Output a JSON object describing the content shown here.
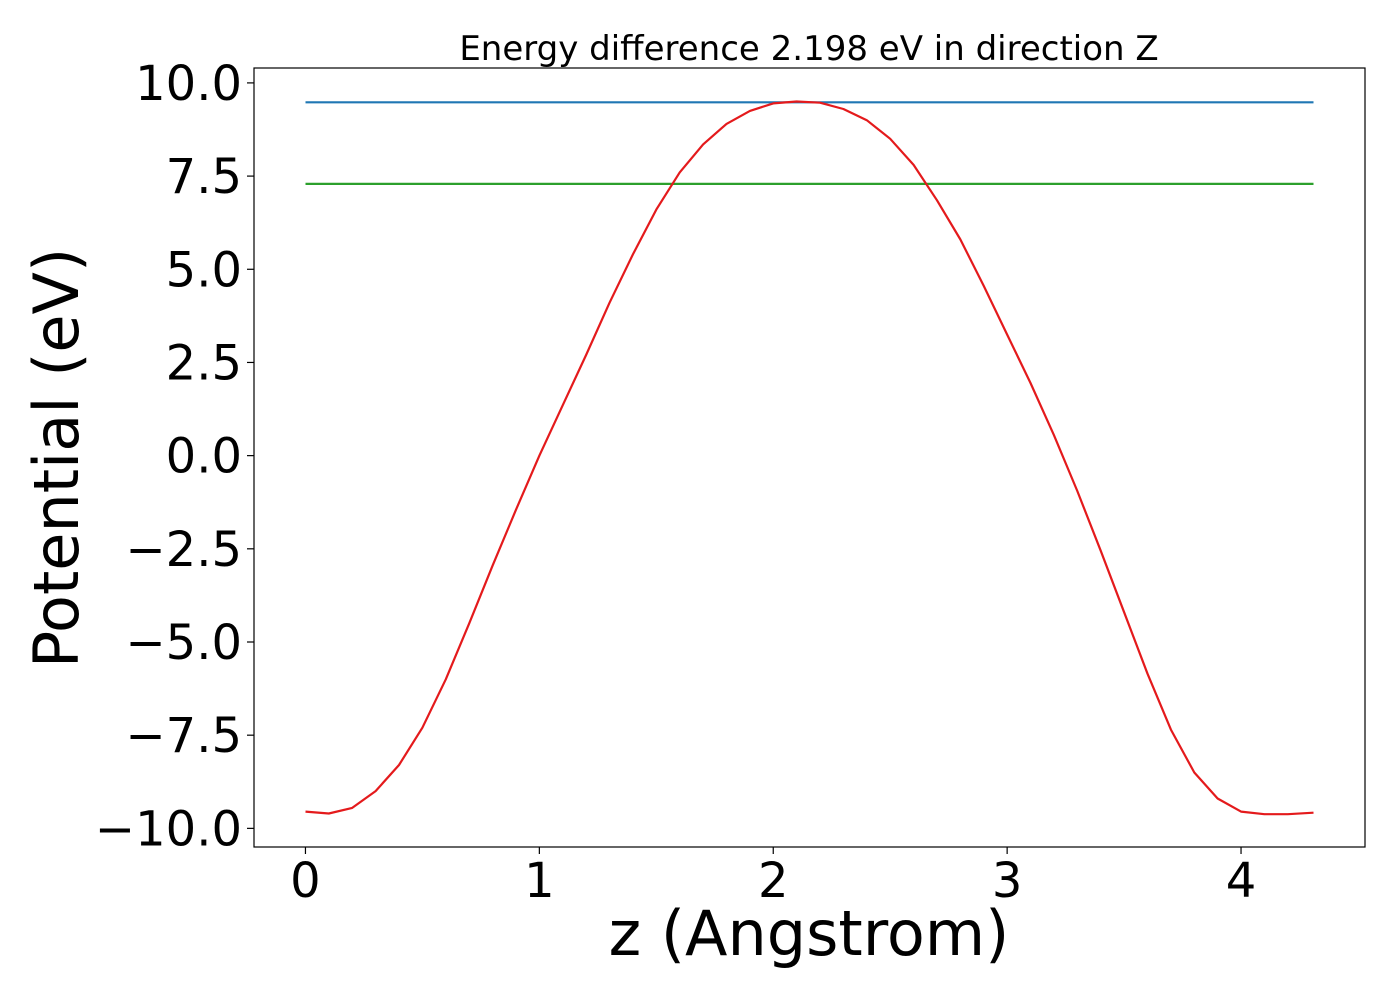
{
  "chart_data": {
    "type": "line",
    "title": "Energy difference 2.198 eV in direction Z",
    "xlabel": "z (Angstrom)",
    "ylabel": "Potential (eV)",
    "xlim": [
      -0.22,
      4.53
    ],
    "ylim": [
      -10.5,
      10.4
    ],
    "xticks": [
      {
        "value": 0,
        "label": "0"
      },
      {
        "value": 1,
        "label": "1"
      },
      {
        "value": 2,
        "label": "2"
      },
      {
        "value": 3,
        "label": "3"
      },
      {
        "value": 4,
        "label": "4"
      }
    ],
    "yticks": [
      {
        "value": 10,
        "label": "10.0"
      },
      {
        "value": 7.5,
        "label": "7.5"
      },
      {
        "value": 5,
        "label": "5.0"
      },
      {
        "value": 2.5,
        "label": "2.5"
      },
      {
        "value": 0,
        "label": "0.0"
      },
      {
        "value": -2.5,
        "label": "−2.5"
      },
      {
        "value": -5,
        "label": "−5.0"
      },
      {
        "value": -7.5,
        "label": "−7.5"
      },
      {
        "value": -10,
        "label": "−10.0"
      }
    ],
    "grid": false,
    "legend": "none",
    "series": [
      {
        "color": "#1f77b4",
        "x": [
          0,
          4.31
        ],
        "y": [
          9.48,
          9.48
        ]
      },
      {
        "color": "#2ca02c",
        "x": [
          0,
          4.31
        ],
        "y": [
          7.29,
          7.29
        ]
      },
      {
        "color": "#e41a1c",
        "x": [
          0,
          0.1,
          0.2,
          0.3,
          0.4,
          0.5,
          0.6,
          0.7,
          0.8,
          0.9,
          1.0,
          1.1,
          1.2,
          1.3,
          1.4,
          1.5,
          1.6,
          1.7,
          1.8,
          1.9,
          2.0,
          2.1,
          2.2,
          2.3,
          2.4,
          2.5,
          2.6,
          2.7,
          2.8,
          2.9,
          3.0,
          3.1,
          3.2,
          3.3,
          3.4,
          3.5,
          3.6,
          3.7,
          3.8,
          3.9,
          4.0,
          4.1,
          4.2,
          4.31
        ],
        "y": [
          -9.55,
          -9.6,
          -9.45,
          -9.0,
          -8.3,
          -7.3,
          -6.0,
          -4.5,
          -2.95,
          -1.45,
          0.0,
          1.35,
          2.7,
          4.1,
          5.4,
          6.6,
          7.6,
          8.35,
          8.9,
          9.25,
          9.45,
          9.5,
          9.47,
          9.3,
          9.0,
          8.5,
          7.8,
          6.85,
          5.8,
          4.55,
          3.25,
          1.95,
          0.55,
          -0.95,
          -2.55,
          -4.2,
          -5.85,
          -7.35,
          -8.5,
          -9.2,
          -9.55,
          -9.62,
          -9.62,
          -9.58
        ]
      }
    ]
  }
}
